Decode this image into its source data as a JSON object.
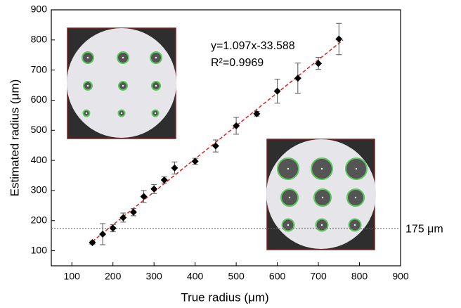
{
  "chart_data": {
    "type": "scatter",
    "x_label": "True radius (μm)",
    "y_label": "Estimated radius (μm)",
    "series": [
      {
        "color": "#000000",
        "x": [
          150,
          175,
          200,
          225,
          250,
          275,
          300,
          325,
          350,
          400,
          450,
          500,
          550,
          600,
          650,
          700,
          750
        ],
        "values": [
          127,
          155,
          175,
          210,
          228,
          280,
          305,
          335,
          375,
          397,
          448,
          515,
          555,
          630,
          673,
          722,
          803
        ],
        "errors": [
          5,
          35,
          12,
          15,
          12,
          20,
          15,
          10,
          20,
          10,
          20,
          28,
          8,
          40,
          50,
          20,
          52
        ]
      }
    ],
    "fit_line": {
      "color": "#e02020",
      "x": [
        150,
        760
      ],
      "y": [
        131,
        800
      ]
    },
    "annotations": [
      "y=1.097x-33.588",
      "R²=0.9969"
    ],
    "threshold": {
      "value": 175,
      "label": "175 μm"
    },
    "xlim": [
      50,
      900
    ],
    "xticks": [
      100,
      200,
      300,
      400,
      500,
      600,
      700,
      800,
      900
    ],
    "ylim": [
      50,
      900
    ],
    "yticks": [
      100,
      200,
      300,
      400,
      500,
      600,
      700,
      800,
      900
    ]
  }
}
